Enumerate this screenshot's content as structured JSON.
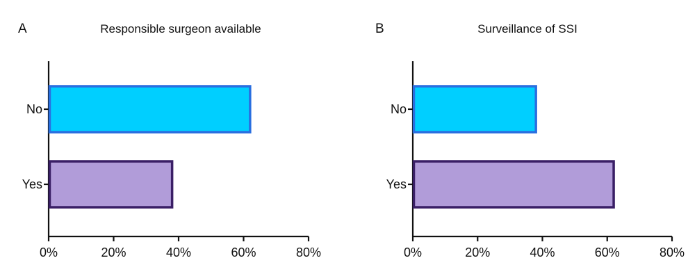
{
  "chart_data": [
    {
      "type": "bar",
      "orientation": "horizontal",
      "panel": "A",
      "title": "Responsible surgeon available",
      "categories": [
        "No",
        "Yes"
      ],
      "values": [
        62,
        38
      ],
      "unit": "%",
      "xlim": [
        0,
        80
      ],
      "xticks": [
        "0%",
        "20%",
        "40%",
        "60%",
        "80%"
      ],
      "colors": {
        "fill": [
          "#00cfff",
          "#b19cd9"
        ],
        "stroke": [
          "#2a6fe0",
          "#3a1f66"
        ]
      }
    },
    {
      "type": "bar",
      "orientation": "horizontal",
      "panel": "B",
      "title": "Surveillance of SSI",
      "categories": [
        "No",
        "Yes"
      ],
      "values": [
        38,
        62
      ],
      "unit": "%",
      "xlim": [
        0,
        80
      ],
      "xticks": [
        "0%",
        "20%",
        "40%",
        "60%",
        "80%"
      ],
      "colors": {
        "fill": [
          "#00cfff",
          "#b19cd9"
        ],
        "stroke": [
          "#2a6fe0",
          "#3a1f66"
        ]
      }
    }
  ]
}
